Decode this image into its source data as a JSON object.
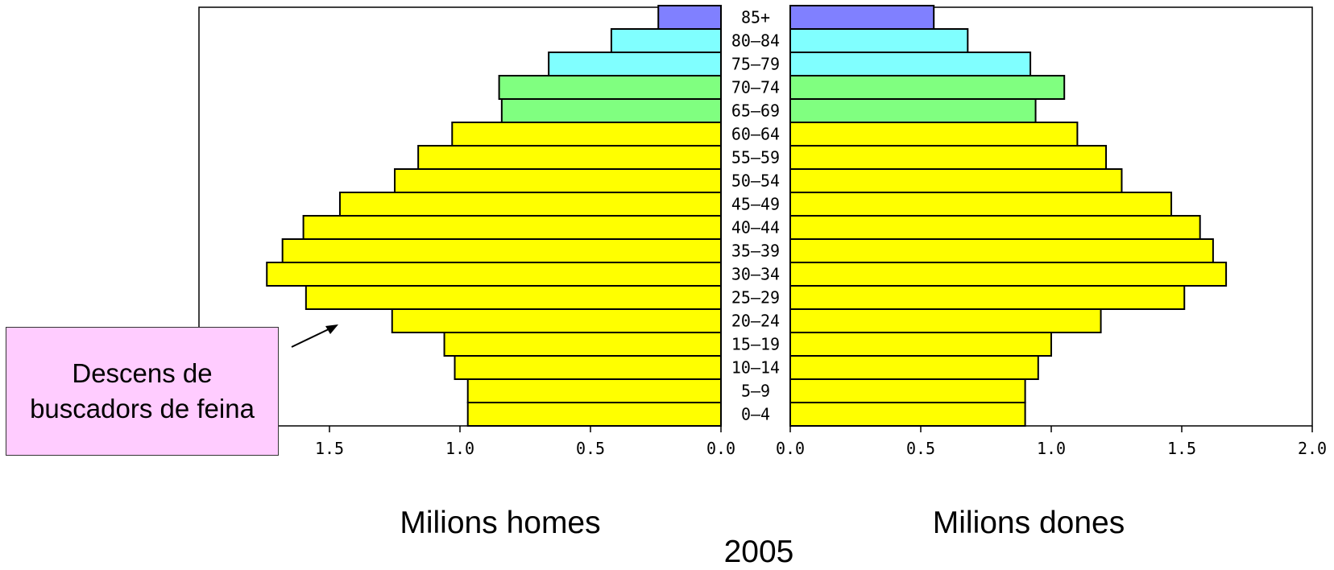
{
  "chart_data": {
    "type": "bar",
    "orientation": "horizontal",
    "layout": "population-pyramid",
    "categories": [
      "0-4",
      "5-9",
      "10-14",
      "15-19",
      "20-24",
      "25-29",
      "30-34",
      "35-39",
      "40-44",
      "45-49",
      "50-54",
      "55-59",
      "60-64",
      "65-69",
      "70-74",
      "75-79",
      "80-84",
      "85+"
    ],
    "category_labels": [
      "0–4",
      "5–9",
      "10–14",
      "15–19",
      "20–24",
      "25–29",
      "30–34",
      "35–39",
      "40–44",
      "45–49",
      "50–54",
      "55–59",
      "60–64",
      "65–69",
      "70–74",
      "75–79",
      "80–84",
      "85+"
    ],
    "series": [
      {
        "name": "Milions homes",
        "side": "left",
        "values": [
          0.97,
          0.97,
          1.02,
          1.06,
          1.26,
          1.59,
          1.74,
          1.68,
          1.6,
          1.46,
          1.25,
          1.16,
          1.03,
          0.84,
          0.85,
          0.66,
          0.42,
          0.24
        ]
      },
      {
        "name": "Milions dones",
        "side": "right",
        "values": [
          0.9,
          0.9,
          0.95,
          1.0,
          1.19,
          1.51,
          1.67,
          1.62,
          1.57,
          1.46,
          1.27,
          1.21,
          1.1,
          0.94,
          1.05,
          0.92,
          0.68,
          0.55
        ]
      }
    ],
    "bar_colors": [
      "#ffff00",
      "#ffff00",
      "#ffff00",
      "#ffff00",
      "#ffff00",
      "#ffff00",
      "#ffff00",
      "#ffff00",
      "#ffff00",
      "#ffff00",
      "#ffff00",
      "#ffff00",
      "#ffff00",
      "#80ff80",
      "#80ff80",
      "#80ffff",
      "#80ffff",
      "#8080ff"
    ],
    "xlim_left": [
      0,
      1.7
    ],
    "xlim_right": [
      0,
      2.0
    ],
    "ticks_left": [
      "0.0",
      "0.5",
      "1.0",
      "1.5"
    ],
    "ticks_right": [
      "0.0",
      "0.5",
      "1.0",
      "1.5",
      "2.0"
    ],
    "xlabel_left": "Milions homes",
    "xlabel_right": "Milions dones",
    "year": "2005",
    "annotation": "Descens de buscadors de feina",
    "annotation_target": "20-24",
    "grid": false
  }
}
